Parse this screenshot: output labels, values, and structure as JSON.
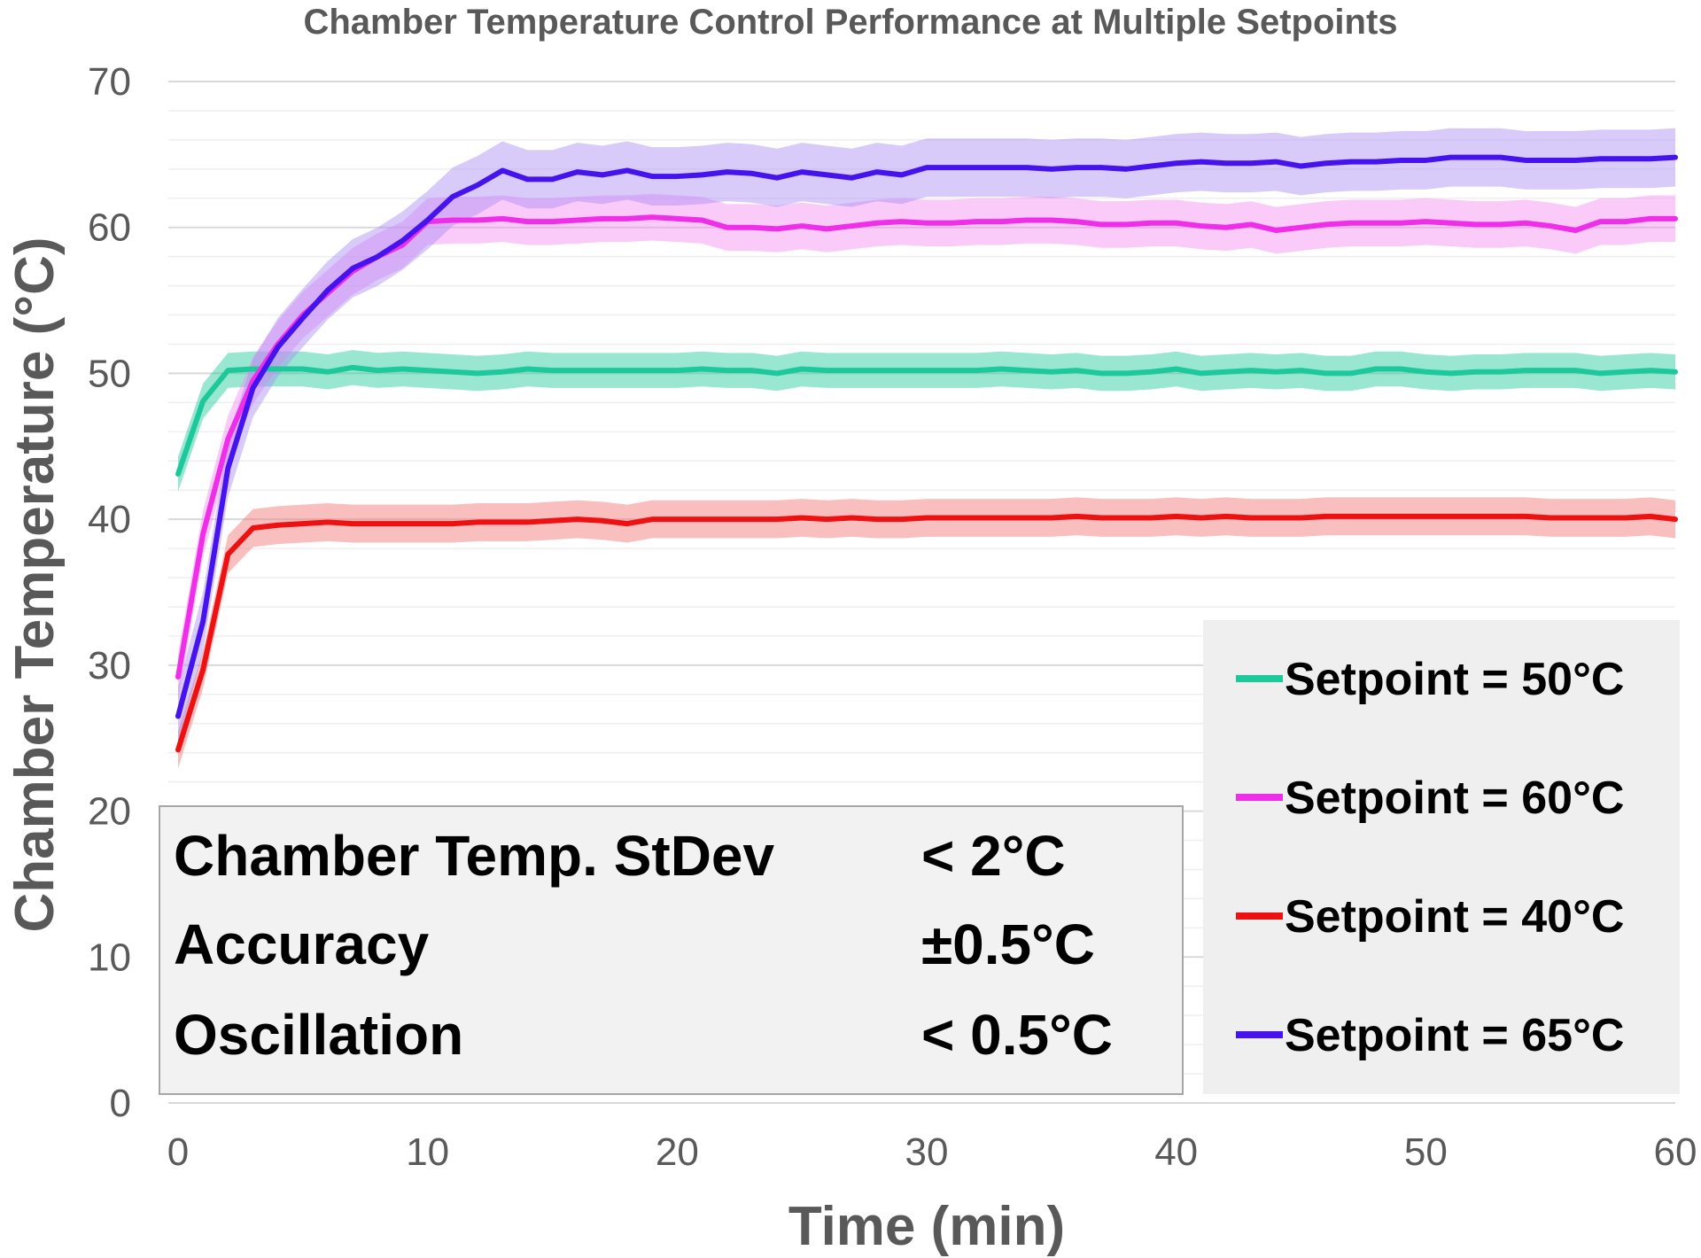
{
  "chart_data": {
    "type": "line",
    "title": "Chamber Temperature Control Performance at Multiple Setpoints",
    "xlabel": "Time (min)",
    "ylabel": "Chamber Temperature (°C)",
    "xlim": [
      0,
      60
    ],
    "ylim": [
      0,
      70
    ],
    "xticks": [
      "0",
      "10",
      "20",
      "30",
      "40",
      "50",
      "60"
    ],
    "yticks": [
      "0",
      "10",
      "20",
      "30",
      "40",
      "50",
      "60",
      "70"
    ],
    "grid": true,
    "legend_position": "bottom-right",
    "x": [
      0,
      1,
      2,
      3,
      4,
      5,
      6,
      7,
      8,
      9,
      10,
      11,
      12,
      13,
      14,
      15,
      16,
      17,
      18,
      19,
      20,
      21,
      22,
      23,
      24,
      25,
      26,
      27,
      28,
      29,
      30,
      31,
      32,
      33,
      34,
      35,
      36,
      37,
      38,
      39,
      40,
      41,
      42,
      43,
      44,
      45,
      46,
      47,
      48,
      49,
      50,
      51,
      52,
      53,
      54,
      55,
      56,
      57,
      58,
      59,
      60
    ],
    "series": [
      {
        "name": "Setpoint = 50°C",
        "color": "#1dc99a",
        "band_color": "#1dc99a",
        "band_halfwidth": 1.2,
        "values": [
          43.1,
          48.1,
          50.2,
          50.3,
          50.3,
          50.3,
          50.1,
          50.4,
          50.2,
          50.3,
          50.2,
          50.1,
          50.0,
          50.1,
          50.3,
          50.2,
          50.2,
          50.2,
          50.2,
          50.2,
          50.2,
          50.3,
          50.2,
          50.2,
          50.0,
          50.3,
          50.2,
          50.2,
          50.2,
          50.2,
          50.2,
          50.2,
          50.2,
          50.3,
          50.2,
          50.1,
          50.2,
          50.0,
          50.0,
          50.1,
          50.3,
          50.0,
          50.1,
          50.2,
          50.1,
          50.2,
          50.0,
          50.0,
          50.3,
          50.3,
          50.1,
          50.0,
          50.1,
          50.1,
          50.2,
          50.2,
          50.2,
          50.0,
          50.1,
          50.2,
          50.1
        ]
      },
      {
        "name": "Setpoint = 60°C",
        "color": "#ee2ee8",
        "band_color": "#f58bf2",
        "band_halfwidth": 1.6,
        "values": [
          29.2,
          39.0,
          45.5,
          49.5,
          52.0,
          54.0,
          55.5,
          57.0,
          58.0,
          58.8,
          60.4,
          60.5,
          60.5,
          60.6,
          60.4,
          60.4,
          60.5,
          60.6,
          60.6,
          60.7,
          60.6,
          60.5,
          60.0,
          60.0,
          59.9,
          60.1,
          59.9,
          60.1,
          60.3,
          60.4,
          60.3,
          60.3,
          60.4,
          60.4,
          60.5,
          60.5,
          60.4,
          60.2,
          60.2,
          60.3,
          60.3,
          60.1,
          60.0,
          60.2,
          59.8,
          60.0,
          60.2,
          60.3,
          60.3,
          60.3,
          60.4,
          60.3,
          60.2,
          60.2,
          60.3,
          60.1,
          59.8,
          60.4,
          60.4,
          60.6,
          60.6
        ]
      },
      {
        "name": "Setpoint = 40°C",
        "color": "#ee1111",
        "band_color": "#f2716e",
        "band_halfwidth": 1.3,
        "values": [
          24.2,
          29.7,
          37.6,
          39.4,
          39.6,
          39.7,
          39.8,
          39.7,
          39.7,
          39.7,
          39.7,
          39.7,
          39.8,
          39.8,
          39.8,
          39.9,
          40.0,
          39.9,
          39.7,
          40.0,
          40.0,
          40.0,
          40.0,
          40.0,
          40.0,
          40.1,
          40.0,
          40.1,
          40.0,
          40.0,
          40.1,
          40.1,
          40.1,
          40.1,
          40.1,
          40.1,
          40.2,
          40.1,
          40.1,
          40.1,
          40.2,
          40.1,
          40.2,
          40.1,
          40.1,
          40.1,
          40.2,
          40.2,
          40.2,
          40.2,
          40.2,
          40.2,
          40.2,
          40.2,
          40.2,
          40.1,
          40.1,
          40.1,
          40.1,
          40.2,
          40.0
        ]
      },
      {
        "name": "Setpoint = 65°C",
        "color": "#4413ee",
        "band_color": "#a98bf5",
        "band_halfwidth": 2.0,
        "values": [
          26.5,
          33.0,
          43.5,
          49.0,
          51.8,
          53.8,
          55.7,
          57.2,
          58.0,
          59.1,
          60.5,
          62.1,
          62.9,
          63.9,
          63.3,
          63.3,
          63.8,
          63.6,
          63.9,
          63.5,
          63.5,
          63.6,
          63.8,
          63.7,
          63.4,
          63.8,
          63.6,
          63.4,
          63.8,
          63.6,
          64.1,
          64.1,
          64.1,
          64.1,
          64.1,
          64.0,
          64.1,
          64.1,
          64.0,
          64.2,
          64.4,
          64.5,
          64.4,
          64.4,
          64.5,
          64.2,
          64.4,
          64.5,
          64.5,
          64.6,
          64.6,
          64.8,
          64.8,
          64.8,
          64.6,
          64.6,
          64.6,
          64.7,
          64.7,
          64.7,
          64.8
        ]
      }
    ],
    "annotation_box": [
      {
        "label": "Chamber Temp. StDev",
        "value": "< 2°C"
      },
      {
        "label": "Accuracy",
        "value": "±0.5°C"
      },
      {
        "label": "Oscillation",
        "value": "< 0.5°C"
      }
    ]
  }
}
